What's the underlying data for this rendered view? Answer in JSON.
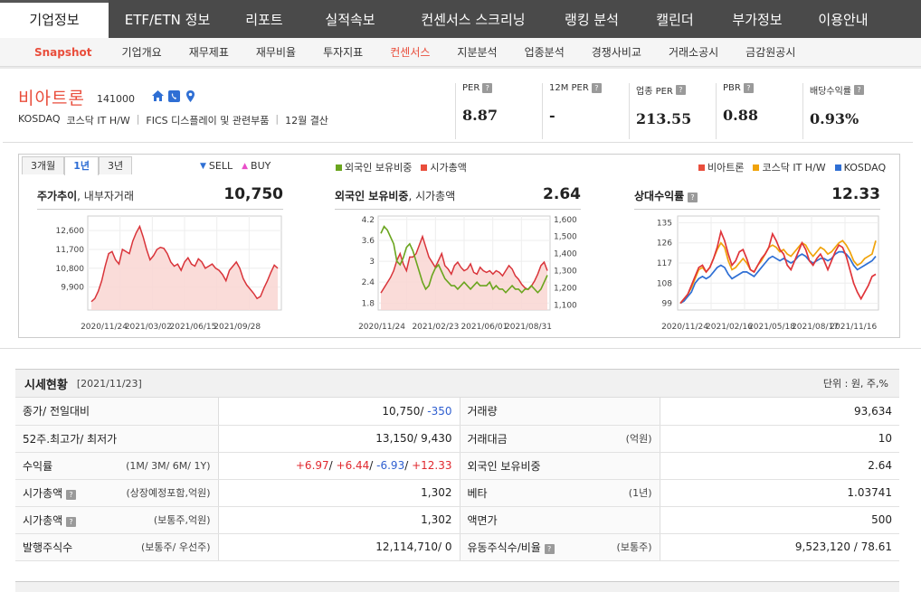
{
  "topnav": [
    "기업정보",
    "ETF/ETN 정보",
    "리포트",
    "실적속보",
    "컨센서스 스크리닝",
    "랭킹 분석",
    "캘린더",
    "부가정보",
    "이용안내"
  ],
  "subnav": [
    "Snapshot",
    "기업개요",
    "재무제표",
    "재무비율",
    "투자지표",
    "컨센서스",
    "지분분석",
    "업종분석",
    "경쟁사비교",
    "거래소공시",
    "금감원공시"
  ],
  "company": {
    "name": "비아트론",
    "code": "141000",
    "market": "KOSDAQ",
    "market_sector": "코스닥 IT H/W",
    "fics": "FICS 디스플레이 및 관련부품",
    "fiscal": "12월 결산"
  },
  "metrics": [
    {
      "label": "PER",
      "value": "8.87"
    },
    {
      "label": "12M PER",
      "value": "-"
    },
    {
      "label": "업종 PER",
      "value": "213.55"
    },
    {
      "label": "PBR",
      "value": "0.88"
    },
    {
      "label": "배당수익률",
      "value": "0.93%"
    }
  ],
  "period_tabs": [
    "3개월",
    "1년",
    "3년"
  ],
  "legends": {
    "sellbuy": [
      "SELL",
      "BUY"
    ],
    "foreign": [
      "외국인 보유비중",
      "시가총액"
    ],
    "relative": [
      "비아트론",
      "코스닥 IT H/W",
      "KOSDAQ"
    ]
  },
  "colors": {
    "accent": "#e94e3c",
    "green": "#6aa51e",
    "orange": "#f0a30a",
    "blue": "#2f6fd4",
    "sell": "#2f6fd4",
    "buy": "#e94ec9"
  },
  "panels": {
    "price": {
      "title": "주가추이",
      "subtitle": ", 내부자거래",
      "value": "10,750"
    },
    "foreign": {
      "title": "외국인 보유비중",
      "subtitle": ", 시가총액",
      "value": "2.64"
    },
    "relative": {
      "title": "상대수익률",
      "value": "12.33"
    }
  },
  "chart_data": [
    {
      "type": "area",
      "title": "주가추이",
      "x_ticks": [
        "2020/11/24",
        "2021/03/02",
        "2021/06/15",
        "2021/09/28"
      ],
      "y_ticks": [
        "12,600",
        "11,700",
        "10,800",
        "9,900"
      ],
      "ylim": [
        8800,
        13300
      ],
      "series": [
        {
          "values": [
            9200,
            9350,
            9700,
            10200,
            10900,
            11500,
            11600,
            11200,
            11000,
            11700,
            11600,
            11500,
            12100,
            12500,
            12800,
            12300,
            11700,
            11200,
            11400,
            11700,
            11800,
            11750,
            11500,
            11100,
            10900,
            11000,
            10700,
            11100,
            11300,
            11000,
            10900,
            11250,
            11100,
            10800,
            10900,
            11000,
            10800,
            10700,
            10500,
            10200,
            10700,
            10900,
            11100,
            10800,
            10300,
            10000,
            9800,
            9600,
            9350,
            9450,
            9850,
            10200,
            10600,
            10950,
            10800
          ]
        }
      ]
    },
    {
      "type": "line",
      "title": "외국인 보유비중, 시가총액",
      "x_ticks": [
        "2020/11/24",
        "2021/02/23",
        "2021/06/01",
        "2021/08/31"
      ],
      "y_ticks_left": [
        "4.2",
        "3.6",
        "3",
        "2.4",
        "1.8"
      ],
      "y_ticks_right": [
        "1,600",
        "1,500",
        "1,400",
        "1,300",
        "1,200",
        "1,100"
      ],
      "ylim_left": [
        1.6,
        4.3
      ],
      "ylim_right": [
        1070,
        1620
      ],
      "series": [
        {
          "name": "외국인 보유비중",
          "axis": "left",
          "values": [
            3.8,
            4.0,
            3.9,
            3.7,
            3.5,
            3.0,
            2.9,
            3.1,
            3.4,
            3.5,
            3.3,
            3.0,
            2.7,
            2.4,
            2.2,
            2.3,
            2.6,
            2.8,
            2.9,
            2.7,
            2.5,
            2.4,
            2.3,
            2.3,
            2.2,
            2.3,
            2.4,
            2.3,
            2.2,
            2.3,
            2.4,
            2.3,
            2.3,
            2.3,
            2.4,
            2.2,
            2.3,
            2.2,
            2.2,
            2.1,
            2.2,
            2.3,
            2.2,
            2.2,
            2.1,
            2.2,
            2.2,
            2.3,
            2.2,
            2.1,
            2.2,
            2.4,
            2.6
          ]
        },
        {
          "name": "시가총액",
          "axis": "right",
          "values": [
            1170,
            1200,
            1230,
            1260,
            1300,
            1360,
            1400,
            1340,
            1300,
            1380,
            1380,
            1400,
            1450,
            1500,
            1440,
            1380,
            1350,
            1320,
            1360,
            1400,
            1330,
            1310,
            1280,
            1330,
            1350,
            1320,
            1300,
            1310,
            1340,
            1290,
            1280,
            1320,
            1300,
            1290,
            1300,
            1280,
            1300,
            1290,
            1270,
            1300,
            1330,
            1310,
            1270,
            1250,
            1220,
            1200,
            1190,
            1210,
            1240,
            1280,
            1330,
            1350,
            1300
          ]
        }
      ]
    },
    {
      "type": "line",
      "title": "상대수익률",
      "x_ticks": [
        "2020/11/24",
        "2021/02/16",
        "2021/05/18",
        "2021/08/17",
        "2021/11/16"
      ],
      "y_ticks": [
        "135",
        "126",
        "117",
        "108",
        "99"
      ],
      "ylim": [
        96,
        138
      ],
      "series": [
        {
          "name": "비아트론",
          "values": [
            99,
            101,
            103,
            107,
            111,
            115,
            116,
            113,
            115,
            119,
            124,
            131,
            127,
            121,
            116,
            118,
            122,
            123,
            119,
            114,
            113,
            116,
            119,
            121,
            124,
            130,
            127,
            123,
            121,
            116,
            114,
            118,
            122,
            126,
            123,
            118,
            116,
            119,
            121,
            118,
            114,
            118,
            122,
            125,
            124,
            120,
            114,
            108,
            104,
            101,
            104,
            107,
            111,
            112
          ]
        },
        {
          "name": "코스닥 IT H/W",
          "values": [
            99,
            101,
            103,
            106,
            110,
            114,
            115,
            113,
            115,
            119,
            123,
            126,
            124,
            118,
            114,
            115,
            117,
            119,
            117,
            114,
            113,
            116,
            118,
            121,
            124,
            125,
            124,
            122,
            123,
            121,
            120,
            122,
            124,
            126,
            125,
            122,
            120,
            122,
            124,
            123,
            121,
            122,
            124,
            126,
            127,
            125,
            122,
            118,
            116,
            117,
            119,
            120,
            121,
            127
          ]
        },
        {
          "name": "KOSDAQ",
          "values": [
            99,
            100,
            102,
            104,
            108,
            110,
            111,
            110,
            111,
            113,
            115,
            116,
            115,
            112,
            110,
            111,
            112,
            113,
            113,
            112,
            111,
            113,
            115,
            117,
            119,
            120,
            119,
            118,
            119,
            118,
            117,
            118,
            120,
            121,
            120,
            118,
            117,
            118,
            119,
            119,
            118,
            119,
            121,
            122,
            122,
            121,
            119,
            116,
            114,
            115,
            116,
            117,
            118,
            120
          ]
        }
      ]
    }
  ],
  "sise": {
    "title": "시세현황",
    "date": "[2021/11/23]",
    "unit": "단위 : 원, 주,%",
    "rows": [
      {
        "l": "종가/ 전일대비",
        "ls": "",
        "v": "10,750/",
        "v2": "-350",
        "r": "거래량",
        "rs": "",
        "rv": "93,634"
      },
      {
        "l": "52주.최고가/ 최저가",
        "ls": "",
        "v": "13,150/ 9,430",
        "r": "거래대금",
        "rs": "(억원)",
        "rv": "10"
      },
      {
        "l": "수익률",
        "ls": "(1M/ 3M/ 6M/ 1Y)",
        "r": "외국인 보유비중",
        "rs": "",
        "rv": "2.64"
      },
      {
        "l": "시가총액",
        "ls": "(상장예정포함,억원)",
        "v": "1,302",
        "r": "베타",
        "rs": "(1년)",
        "rv": "1.03741"
      },
      {
        "l": "시가총액",
        "ls": "(보통주,억원)",
        "v": "1,302",
        "r": "액면가",
        "rs": "",
        "rv": "500"
      },
      {
        "l": "발행주식수",
        "ls": "(보통주/ 우선주)",
        "v": "12,114,710/ 0",
        "r": "유동주식수/비율",
        "rs": "(보통주)",
        "rv": "9,523,120 / 78.61"
      }
    ],
    "returns": [
      "+6.97",
      "+6.44",
      "-6.93",
      "+12.33"
    ]
  }
}
